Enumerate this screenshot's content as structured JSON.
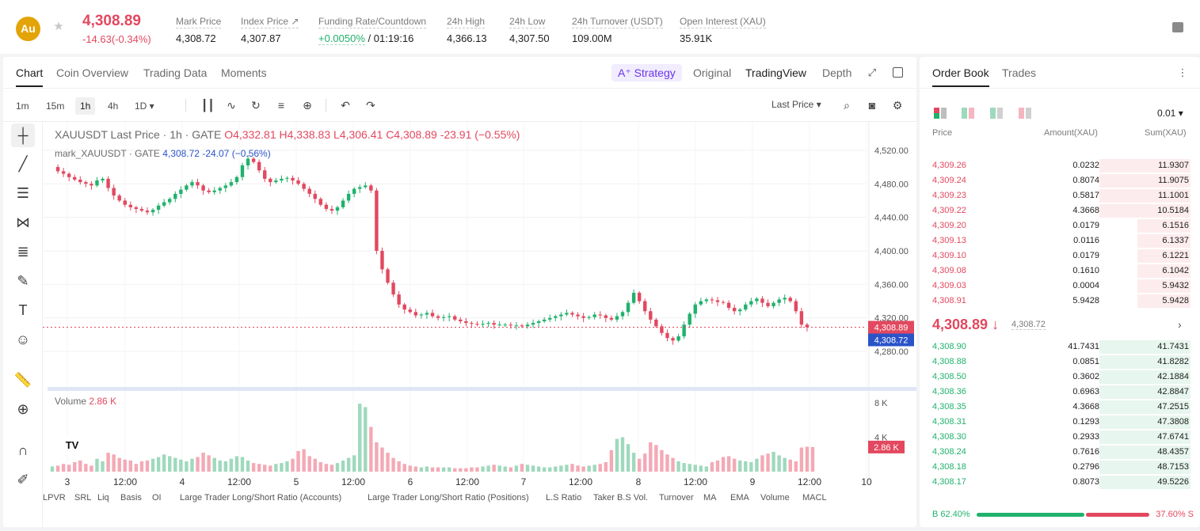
{
  "header": {
    "coin_symbol": "Au",
    "last_price": "4,308.89",
    "change": "-14.63(-0.34%)",
    "stats": [
      {
        "label": "Mark Price",
        "value": "4,308.72"
      },
      {
        "label": "Index Price ↗",
        "value": "4,307.87"
      },
      {
        "label": "Funding Rate/Countdown",
        "value": "+0.0050%",
        "value2": " / 01:19:16"
      },
      {
        "label": "24h High",
        "value": "4,366.13"
      },
      {
        "label": "24h Low",
        "value": "4,307.50"
      },
      {
        "label": "24h Turnover (USDT)",
        "value": "109.00M"
      },
      {
        "label": "Open Interest (XAU)",
        "value": "35.91K"
      }
    ]
  },
  "chart_tabs": {
    "items": [
      "Chart",
      "Coin Overview",
      "Trading Data",
      "Moments"
    ],
    "strategy": "A⁺ Strategy",
    "views": [
      "Original",
      "TradingView",
      "Depth"
    ]
  },
  "toolbar": {
    "timeframes": [
      "1m",
      "15m",
      "1h",
      "4h",
      "1D ▾"
    ],
    "price_type": "Last Price ▾"
  },
  "legend": {
    "main_prefix": "XAUUSDT Last Price · 1h · GATE",
    "o": "O4,332.81",
    "h": "H4,338.83",
    "l": "L4,306.41",
    "c": "C4,308.89",
    "chg": "-23.91 (−0.55%)",
    "mark_prefix": "mark_XAUUSDT · GATE",
    "mark_val": "4,308.72",
    "mark_chg": "-24.07 (−0.56%)",
    "volume_label": "Volume",
    "volume_val": "2.86 K"
  },
  "chart_data": {
    "type": "candlestick",
    "title": "XAUUSDT Last Price · 1h · GATE",
    "y_ticks": [
      "4,520.00",
      "4,480.00",
      "4,440.00",
      "4,400.00",
      "4,360.00",
      "4,320.00",
      "4,280.00"
    ],
    "ylim": [
      4265,
      4535
    ],
    "x_ticks": [
      "3",
      "12:00",
      "4",
      "12:00",
      "5",
      "12:00",
      "6",
      "12:00",
      "7",
      "12:00",
      "8",
      "12:00",
      "9",
      "12:00",
      "10"
    ],
    "price_labels": {
      "last": "4,308.89",
      "mark": "4,308.72",
      "volume": "2.86 K"
    },
    "volume_ticks": [
      "8 K",
      "4 K"
    ],
    "vol_max": 8000,
    "series": [
      {
        "name": "price_path",
        "values": [
          4500,
          4495,
          4492,
          4488,
          4485,
          4482,
          4480,
          4478,
          4484,
          4486,
          4475,
          4466,
          4460,
          4455,
          4452,
          4450,
          4448,
          4446,
          4449,
          4454,
          4458,
          4462,
          4468,
          4473,
          4478,
          4482,
          4478,
          4472,
          4470,
          4472,
          4475,
          4478,
          4482,
          4488,
          4502,
          4510,
          4506,
          4496,
          4486,
          4482,
          4484,
          4486,
          4487,
          4484,
          4480,
          4474,
          4468,
          4462,
          4455,
          4450,
          4448,
          4452,
          4460,
          4468,
          4474,
          4476,
          4478,
          4472,
          4400,
          4378,
          4362,
          4348,
          4336,
          4330,
          4327,
          4323,
          4324,
          4326,
          4322,
          4320,
          4321,
          4322,
          4318,
          4316,
          4314,
          4313,
          4312,
          4313,
          4314,
          4312,
          4312,
          4312,
          4311,
          4311,
          4310,
          4312,
          4314,
          4316,
          4318,
          4320,
          4322,
          4324,
          4326,
          4324,
          4322,
          4320,
          4321,
          4324,
          4323,
          4320,
          4318,
          4322,
          4327,
          4338,
          4350,
          4340,
          4328,
          4318,
          4310,
          4302,
          4296,
          4293,
          4298,
          4312,
          4325,
          4336,
          4340,
          4342,
          4341,
          4339,
          4338,
          4332,
          4328,
          4330,
          4336,
          4340,
          4343,
          4338,
          4334,
          4338,
          4342,
          4344,
          4340,
          4328,
          4312,
          4308.89
        ]
      },
      {
        "name": "volume",
        "values": [
          600,
          700,
          900,
          800,
          1100,
          1300,
          900,
          700,
          1500,
          1200,
          2200,
          2000,
          1600,
          1400,
          1300,
          900,
          1200,
          1300,
          1500,
          1700,
          2000,
          1800,
          1600,
          1400,
          1200,
          1500,
          1700,
          2200,
          1900,
          1600,
          1300,
          1200,
          1500,
          1800,
          1700,
          1300,
          1000,
          900,
          800,
          700,
          900,
          1000,
          1200,
          1500,
          2400,
          2600,
          1800,
          1500,
          1100,
          900,
          800,
          1000,
          1300,
          1600,
          1900,
          7900,
          7500,
          5200,
          3400,
          2800,
          2200,
          1600,
          1200,
          900,
          700,
          600,
          500,
          600,
          500,
          500,
          500,
          500,
          400,
          400,
          400,
          500,
          500,
          600,
          700,
          800,
          700,
          600,
          500,
          700,
          900,
          800,
          700,
          600,
          500,
          500,
          600,
          700,
          800,
          900,
          700,
          600,
          700,
          800,
          900,
          1100,
          2500,
          3800,
          4000,
          3200,
          2200,
          1500,
          2100,
          3400,
          3100,
          2500,
          2000,
          1600,
          1200,
          1000,
          900,
          800,
          700,
          600,
          1100,
          1300,
          1700,
          1800,
          1500,
          1300,
          1200,
          1100,
          1500,
          1900,
          2100,
          2300,
          1900,
          1600,
          1400,
          1200,
          2800,
          2900,
          2860
        ]
      }
    ]
  },
  "indicators": [
    "LPVR",
    "SRL",
    "Liq",
    "Basis",
    "OI",
    "Large Trader Long/Short Ratio (Accounts)",
    "Large Trader Long/Short Ratio (Positions)",
    "L.S Ratio",
    "Taker B.S Vol.",
    "Turnover",
    "MA",
    "EMA",
    "Volume",
    "MACL"
  ],
  "orderbook": {
    "tabs": [
      "Order Book",
      "Trades"
    ],
    "tick": "0.01 ▾",
    "headers": [
      "Price",
      "Amount(XAU)",
      "Sum(XAU)"
    ],
    "asks": [
      {
        "p": "4,309.26",
        "a": "0.0232",
        "s": "11.9307",
        "w": 0.975
      },
      {
        "p": "4,309.24",
        "a": "0.8074",
        "s": "11.9075",
        "w": 0.975
      },
      {
        "p": "4,309.23",
        "a": "0.5817",
        "s": "11.1001",
        "w": 0.975
      },
      {
        "p": "4,309.22",
        "a": "4.3668",
        "s": "10.5184",
        "w": 0.975
      },
      {
        "p": "4,309.20",
        "a": "0.0179",
        "s": "6.1516",
        "w": 0.57
      },
      {
        "p": "4,309.13",
        "a": "0.0116",
        "s": "6.1337",
        "w": 0.57
      },
      {
        "p": "4,309.10",
        "a": "0.0179",
        "s": "6.1221",
        "w": 0.57
      },
      {
        "p": "4,309.08",
        "a": "0.1610",
        "s": "6.1042",
        "w": 0.57
      },
      {
        "p": "4,309.03",
        "a": "0.0004",
        "s": "5.9432",
        "w": 0.57
      },
      {
        "p": "4,308.91",
        "a": "5.9428",
        "s": "5.9428",
        "w": 0.57
      }
    ],
    "mid": {
      "price": "4,308.89 ↓",
      "mark": "4,308.72"
    },
    "bids": [
      {
        "p": "4,308.90",
        "a": "41.7431",
        "s": "41.7431",
        "w": 0.975
      },
      {
        "p": "4,308.88",
        "a": "0.0851",
        "s": "41.8282",
        "w": 0.975
      },
      {
        "p": "4,308.50",
        "a": "0.3602",
        "s": "42.1884",
        "w": 0.975
      },
      {
        "p": "4,308.36",
        "a": "0.6963",
        "s": "42.8847",
        "w": 0.975
      },
      {
        "p": "4,308.35",
        "a": "4.3668",
        "s": "47.2515",
        "w": 0.975
      },
      {
        "p": "4,308.31",
        "a": "0.1293",
        "s": "47.3808",
        "w": 0.975
      },
      {
        "p": "4,308.30",
        "a": "0.2933",
        "s": "47.6741",
        "w": 0.975
      },
      {
        "p": "4,308.24",
        "a": "0.7616",
        "s": "48.4357",
        "w": 0.975
      },
      {
        "p": "4,308.18",
        "a": "0.2796",
        "s": "48.7153",
        "w": 0.975
      },
      {
        "p": "4,308.17",
        "a": "0.8073",
        "s": "49.5226",
        "w": 0.975
      }
    ],
    "buy_ratio": "B 62.40%",
    "sell_ratio": "37.60% S",
    "buy_pct": 62.4
  },
  "colors": {
    "up": "#20b26c",
    "down": "#e2485f",
    "mark": "#2b53c8"
  }
}
